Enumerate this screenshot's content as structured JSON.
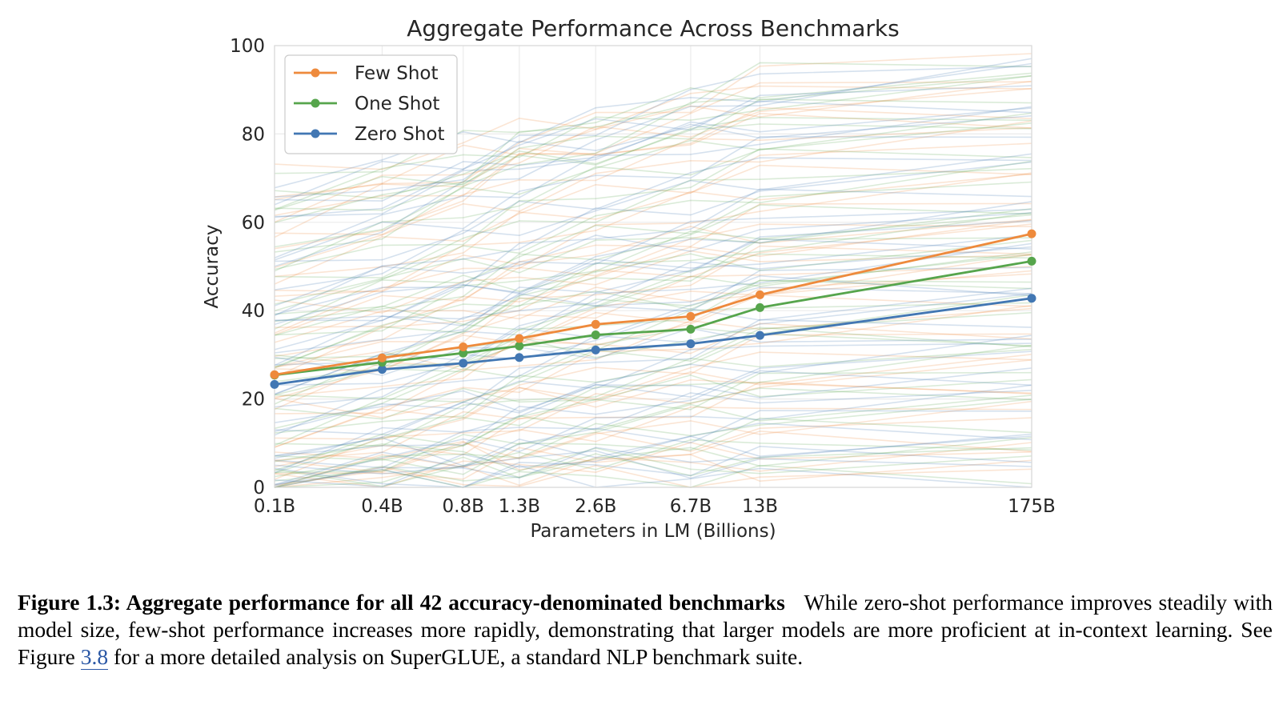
{
  "chart_data": {
    "type": "line",
    "title": "Aggregate Performance Across Benchmarks",
    "xlabel": "Parameters in LM (Billions)",
    "ylabel": "Accuracy",
    "categories": [
      "0.1B",
      "0.4B",
      "0.8B",
      "1.3B",
      "2.6B",
      "6.7B",
      "13B",
      "175B"
    ],
    "x": [
      0.125,
      0.35,
      0.76,
      1.3,
      2.7,
      6.7,
      13,
      175
    ],
    "x_scale": "log",
    "ylim": [
      0,
      100
    ],
    "yticks": [
      0,
      20,
      40,
      60,
      80,
      100
    ],
    "grid": true,
    "legend": "top-left",
    "series": [
      {
        "name": "Few Shot",
        "color": "#ee8a3c",
        "values": [
          25.5,
          29.3,
          31.8,
          33.7,
          36.9,
          38.7,
          43.6,
          57.4
        ]
      },
      {
        "name": "One Shot",
        "color": "#56a54c",
        "values": [
          25.4,
          28.3,
          30.4,
          32.0,
          34.5,
          35.8,
          40.7,
          51.2
        ]
      },
      {
        "name": "Zero Shot",
        "color": "#4277b3",
        "values": [
          23.3,
          26.7,
          28.1,
          29.4,
          31.1,
          32.5,
          34.4,
          42.8
        ]
      }
    ],
    "background_benchmarks": {
      "count_per_setting": 42,
      "colors": [
        "#ee8a3c",
        "#56a54c",
        "#4277b3"
      ],
      "start_values": [
        70,
        66,
        63,
        60,
        55,
        52,
        48,
        45,
        42,
        38,
        35,
        33,
        30,
        28,
        26,
        24,
        22,
        20,
        18,
        15,
        12,
        10,
        8,
        6,
        5,
        4,
        3,
        2,
        2,
        1,
        1,
        0.5,
        58,
        51,
        44,
        36,
        27,
        17,
        9,
        1.5,
        64,
        40
      ],
      "end_values": [
        93,
        90,
        88,
        86,
        83,
        80,
        77,
        74,
        71,
        68,
        65,
        62,
        59,
        57,
        55,
        52,
        50,
        47,
        44,
        41,
        38,
        35,
        32,
        29,
        26,
        23,
        20,
        17,
        14,
        11,
        9,
        7,
        98,
        95,
        60,
        46,
        35,
        24,
        4,
        2,
        84,
        54
      ]
    }
  },
  "caption": {
    "label": "Figure 1.3: Aggregate performance for all 42 accuracy-denominated benchmarks",
    "text_before_link": "While zero-shot performance improves steadily with model size, few-shot performance increases more rapidly, demonstrating that larger models are more proficient at in-context learning. See Figure",
    "link_text": "3.8",
    "text_after_link": "for a more detailed analysis on SuperGLUE, a standard NLP benchmark suite."
  }
}
